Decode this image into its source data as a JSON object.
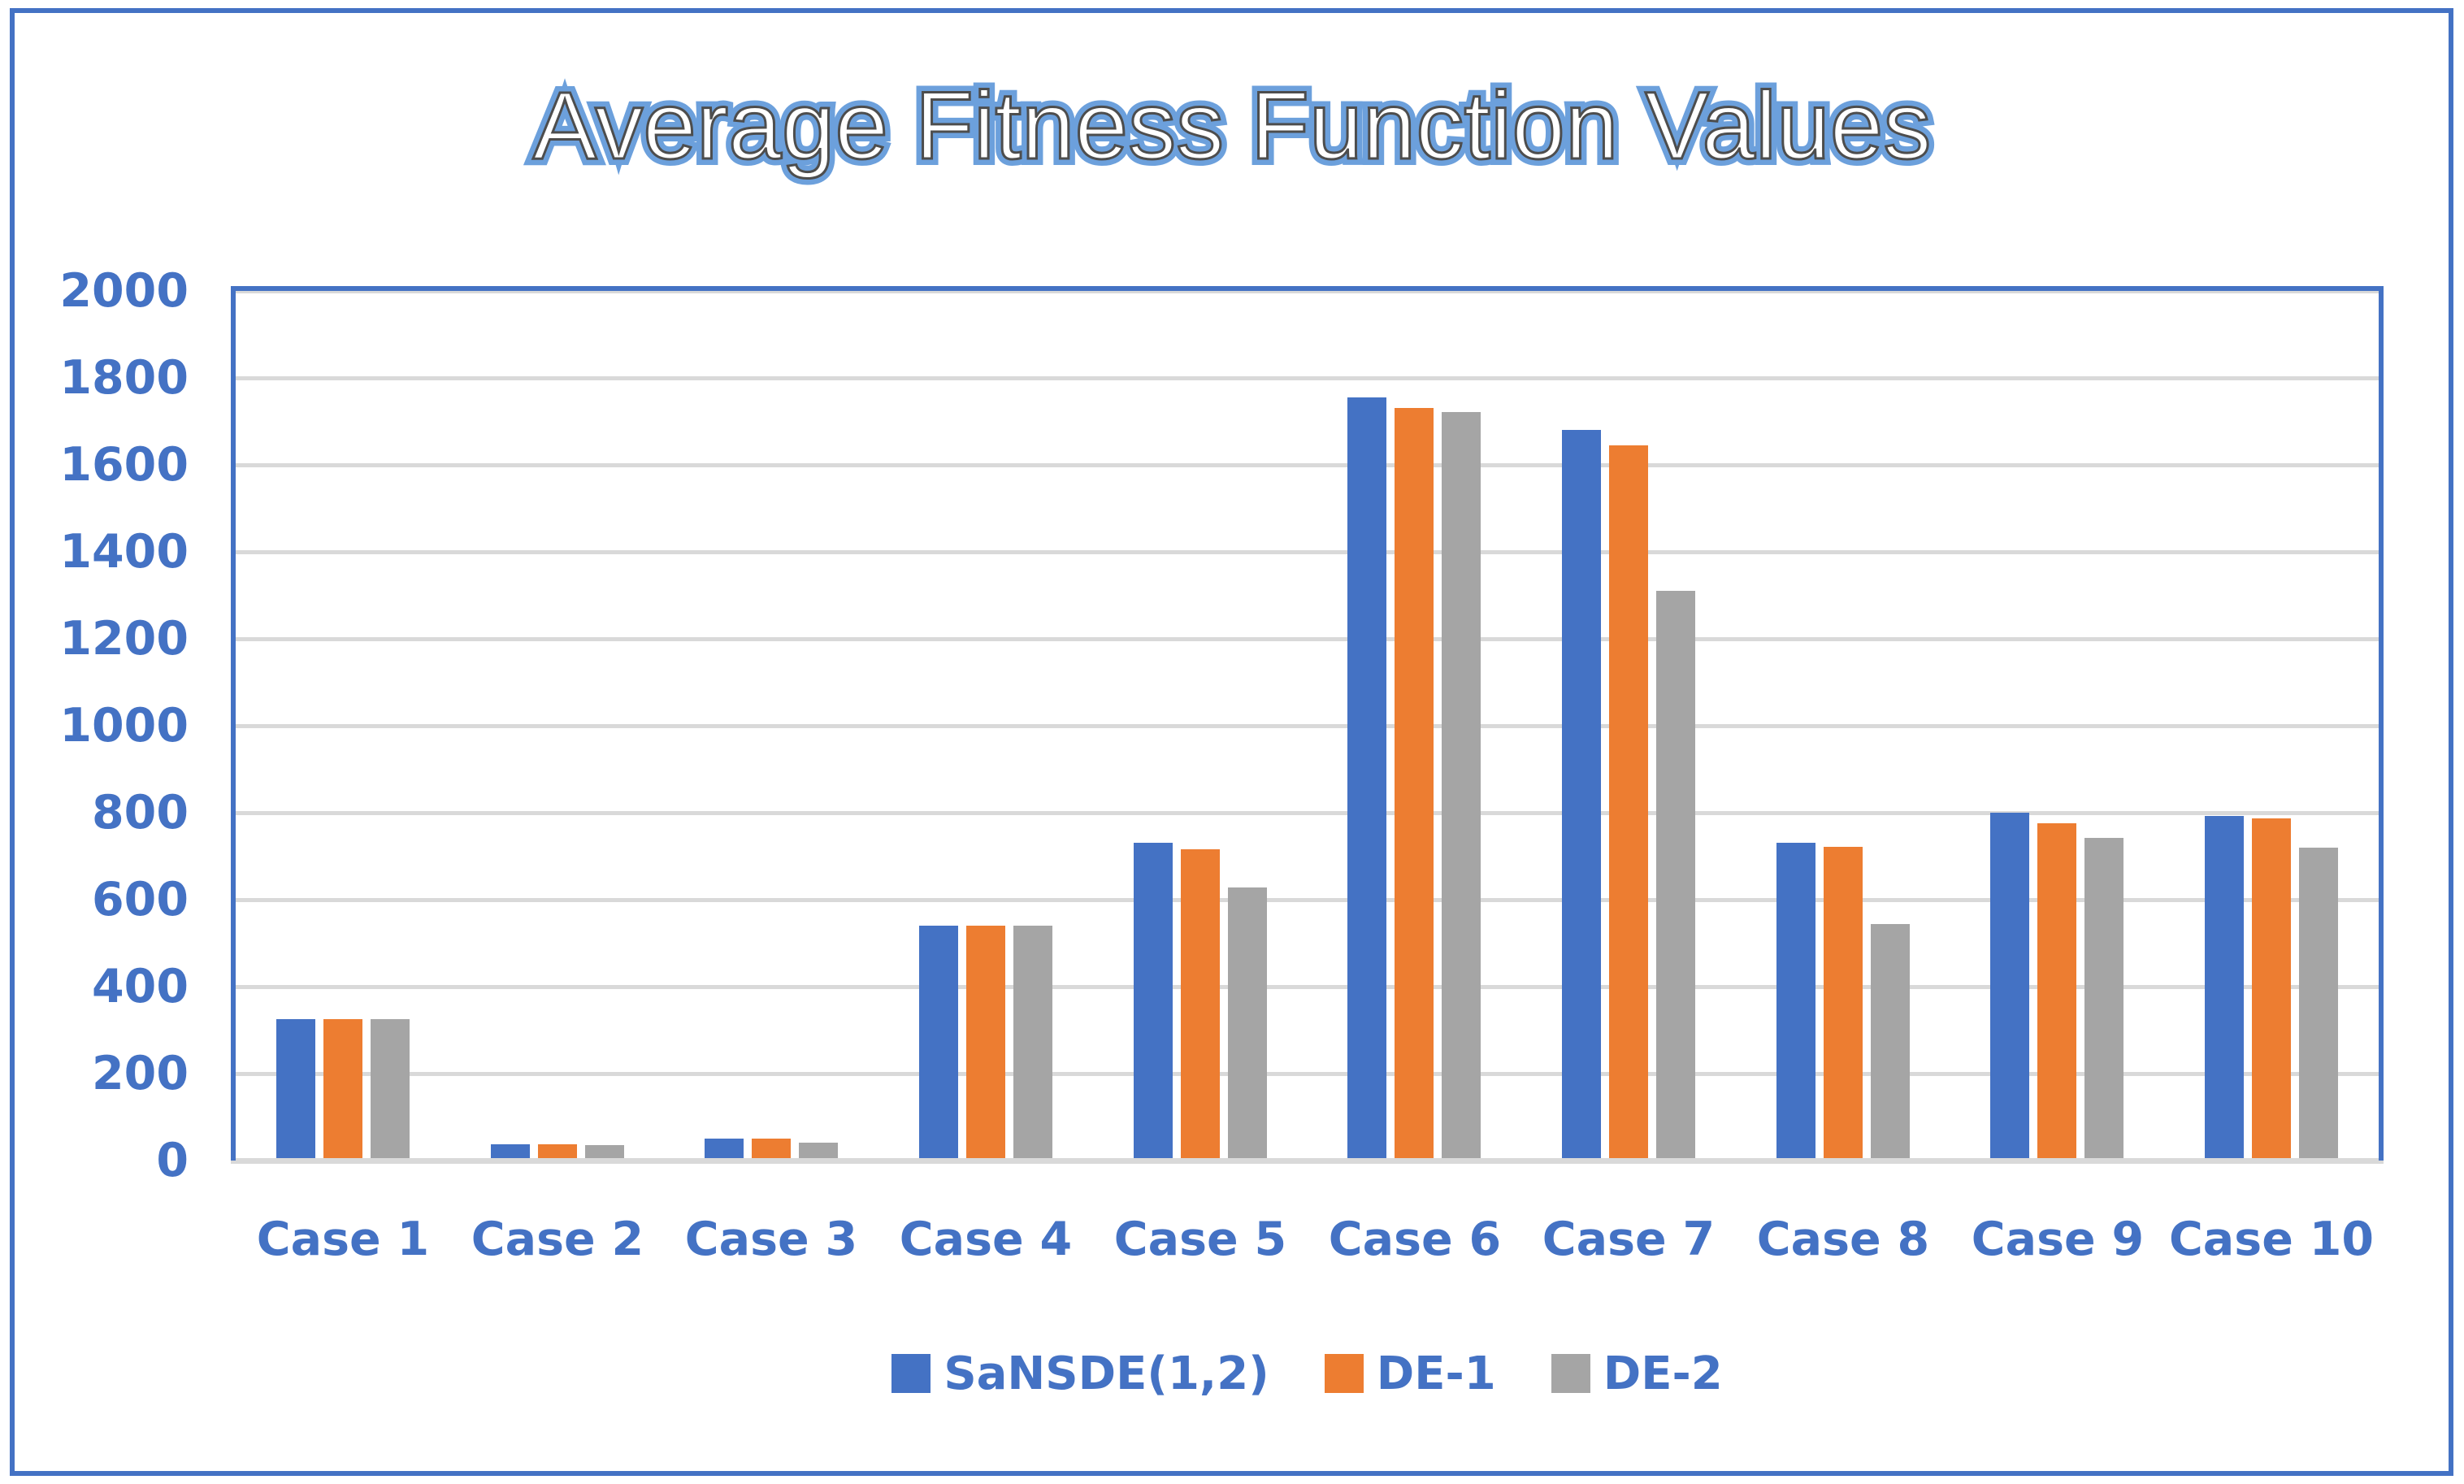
{
  "page": {
    "background": "#FFFFFF",
    "border_color": "#4472C4"
  },
  "title_style": {
    "fill": "#FFFFFF",
    "inner_outline": "#4D4D4D",
    "outer_glow": "#6CA0DC"
  },
  "chart_data": {
    "type": "bar",
    "title": "Average Fitness Function Values",
    "categories": [
      "Case 1",
      "Case 2",
      "Case 3",
      "Case 4",
      "Case 5",
      "Case 6",
      "Case 7",
      "Case 8",
      "Case 9",
      "Case 10"
    ],
    "series": [
      {
        "name": "SaNSDE(1,2)",
        "color": "#4472C4",
        "values": [
          325,
          38,
          50,
          540,
          730,
          1755,
          1680,
          730,
          800,
          793
        ]
      },
      {
        "name": "DE-1",
        "color": "#ED7D31",
        "values": [
          325,
          38,
          50,
          540,
          715,
          1730,
          1645,
          721,
          775,
          786
        ]
      },
      {
        "name": "DE-2",
        "color": "#A5A5A5",
        "values": [
          325,
          35,
          42,
          540,
          628,
          1722,
          1310,
          543,
          742,
          720
        ]
      }
    ],
    "ylim": [
      0,
      2000
    ],
    "ytick_step": 200,
    "yticks": [
      "0",
      "200",
      "400",
      "600",
      "800",
      "1000",
      "1200",
      "1400",
      "1600",
      "1800",
      "2000"
    ],
    "grid": "horizontal",
    "gridline_color": "#D9D9D9",
    "axis_label_color": "#4472C4",
    "plot_border_color": "#4472C4",
    "legend_position": "bottom"
  }
}
